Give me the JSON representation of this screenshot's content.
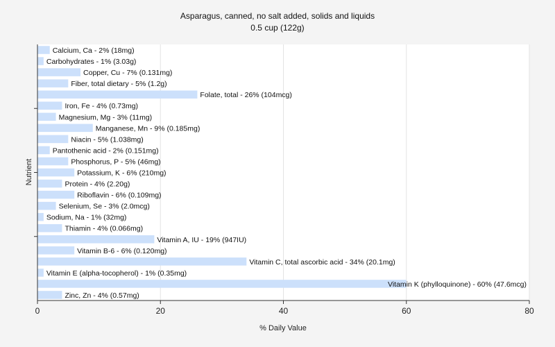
{
  "chart_data": {
    "type": "bar",
    "orientation": "horizontal",
    "title": "Asparagus, canned, no salt added, solids and liquids",
    "subtitle": "0.5 cup (122g)",
    "xlabel": "% Daily Value",
    "ylabel": "Nutrient",
    "xlim": [
      0,
      80
    ],
    "xticks": [
      0,
      20,
      40,
      60,
      80
    ],
    "grid": true,
    "bar_color": "#cce0fb",
    "categories": [
      "Calcium, Ca",
      "Carbohydrates",
      "Copper, Cu",
      "Fiber, total dietary",
      "Folate, total",
      "Iron, Fe",
      "Magnesium, Mg",
      "Manganese, Mn",
      "Niacin",
      "Pantothenic acid",
      "Phosphorus, P",
      "Potassium, K",
      "Protein",
      "Riboflavin",
      "Selenium, Se",
      "Sodium, Na",
      "Thiamin",
      "Vitamin A, IU",
      "Vitamin B-6",
      "Vitamin C, total ascorbic acid",
      "Vitamin E (alpha-tocopherol)",
      "Vitamin K (phylloquinone)",
      "Zinc, Zn"
    ],
    "values": [
      2,
      1,
      7,
      5,
      26,
      4,
      3,
      9,
      5,
      2,
      5,
      6,
      4,
      6,
      3,
      1,
      4,
      19,
      6,
      34,
      1,
      60,
      4
    ],
    "labels": [
      "Calcium, Ca - 2% (18mg)",
      "Carbohydrates - 1% (3.03g)",
      "Copper, Cu - 7% (0.131mg)",
      "Fiber, total dietary - 5% (1.2g)",
      "Folate, total - 26% (104mcg)",
      "Iron, Fe - 4% (0.73mg)",
      "Magnesium, Mg - 3% (11mg)",
      "Manganese, Mn - 9% (0.185mg)",
      "Niacin - 5% (1.038mg)",
      "Pantothenic acid - 2% (0.151mg)",
      "Phosphorus, P - 5% (46mg)",
      "Potassium, K - 6% (210mg)",
      "Protein - 4% (2.20g)",
      "Riboflavin - 6% (0.109mg)",
      "Selenium, Se - 3% (2.0mcg)",
      "Sodium, Na - 1% (32mg)",
      "Thiamin - 4% (0.066mg)",
      "Vitamin A, IU - 19% (947IU)",
      "Vitamin B-6 - 6% (0.120mg)",
      "Vitamin C, total ascorbic acid - 34% (20.1mg)",
      "Vitamin E (alpha-tocopherol) - 1% (0.35mg)",
      "Vitamin K (phylloquinone) - 60% (47.6mcg)",
      "Zinc, Zn - 4% (0.57mg)"
    ]
  }
}
